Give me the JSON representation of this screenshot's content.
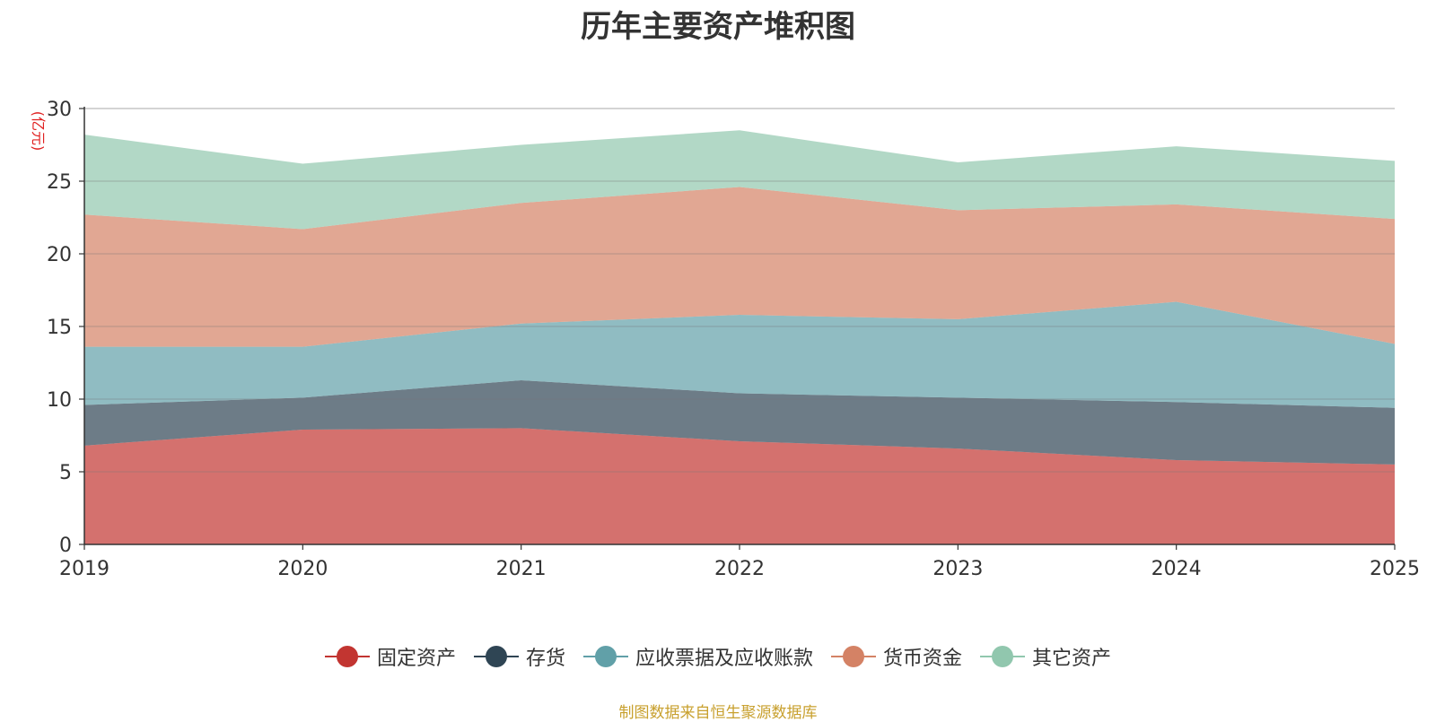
{
  "chart_data": {
    "type": "area",
    "stacked": true,
    "title": "历年主要资产堆积图",
    "ylabel": "(亿元)",
    "xlabel": "",
    "ylim": [
      0,
      30
    ],
    "yticks": [
      0,
      5,
      10,
      15,
      20,
      25,
      30
    ],
    "categories": [
      "2019",
      "2020",
      "2021",
      "2022",
      "2023",
      "2024",
      "2025"
    ],
    "series": [
      {
        "name": "固定资产",
        "color": "#c23531",
        "values": [
          6.8,
          7.9,
          8.0,
          7.1,
          6.6,
          5.8,
          5.5
        ]
      },
      {
        "name": "存货",
        "color": "#2f4554",
        "values": [
          2.8,
          2.2,
          3.3,
          3.3,
          3.5,
          4.0,
          3.9
        ]
      },
      {
        "name": "应收票据及应收账款",
        "color": "#61a0a8",
        "values": [
          4.0,
          3.5,
          3.9,
          5.4,
          5.4,
          6.9,
          4.4
        ]
      },
      {
        "name": "货币资金",
        "color": "#d48265",
        "values": [
          9.1,
          8.1,
          8.3,
          8.8,
          7.5,
          6.7,
          8.6
        ]
      },
      {
        "name": "其它资产",
        "color": "#91c7ae",
        "values": [
          5.5,
          4.5,
          4.0,
          3.9,
          3.3,
          4.0,
          4.0
        ]
      }
    ]
  },
  "source_text": "制图数据来自恒生聚源数据库"
}
